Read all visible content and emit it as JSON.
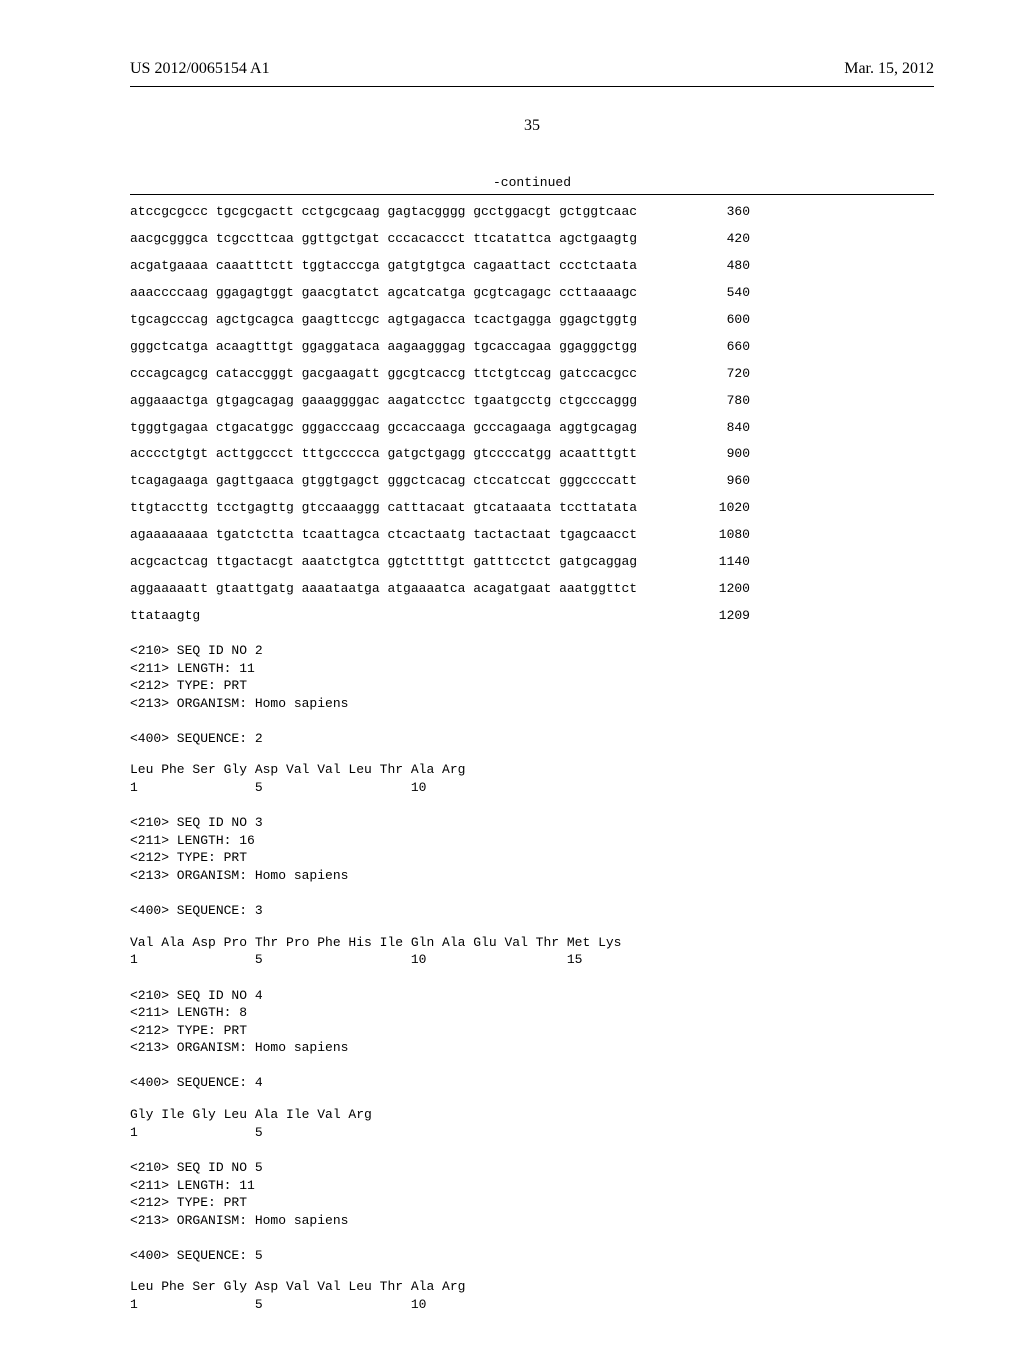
{
  "header": {
    "left": "US 2012/0065154 A1",
    "right": "Mar. 15, 2012"
  },
  "page_number": "35",
  "continued_label": "-continued",
  "nucleotide_rows": [
    {
      "seq": "atccgcgccc tgcgcgactt cctgcgcaag gagtacgggg gcctggacgt gctggtcaac",
      "n": "360"
    },
    {
      "seq": "aacgcgggca tcgccttcaa ggttgctgat cccacaccct ttcatattca agctgaagtg",
      "n": "420"
    },
    {
      "seq": "acgatgaaaa caaatttctt tggtacccga gatgtgtgca cagaattact ccctctaata",
      "n": "480"
    },
    {
      "seq": "aaaccccaag ggagagtggt gaacgtatct agcatcatga gcgtcagagc ccttaaaagc",
      "n": "540"
    },
    {
      "seq": "tgcagcccag agctgcagca gaagttccgc agtgagacca tcactgagga ggagctggtg",
      "n": "600"
    },
    {
      "seq": "gggctcatga acaagtttgt ggaggataca aagaagggag tgcaccagaa ggagggctgg",
      "n": "660"
    },
    {
      "seq": "cccagcagcg cataccgggt gacgaagatt ggcgtcaccg ttctgtccag gatccacgcc",
      "n": "720"
    },
    {
      "seq": "aggaaactga gtgagcagag gaaaggggac aagatcctcc tgaatgcctg ctgcccaggg",
      "n": "780"
    },
    {
      "seq": "tgggtgagaa ctgacatggc gggacccaag gccaccaaga gcccagaaga aggtgcagag",
      "n": "840"
    },
    {
      "seq": "acccctgtgt acttggccct tttgccccca gatgctgagg gtccccatgg acaatttgtt",
      "n": "900"
    },
    {
      "seq": "tcagagaaga gagttgaaca gtggtgagct gggctcacag ctccatccat gggccccatt",
      "n": "960"
    },
    {
      "seq": "ttgtaccttg tcctgagttg gtccaaaggg catttacaat gtcataaata tccttatata",
      "n": "1020"
    },
    {
      "seq": "agaaaaaaaa tgatctctta tcaattagca ctcactaatg tactactaat tgagcaacct",
      "n": "1080"
    },
    {
      "seq": "acgcactcag ttgactacgt aaatctgtca ggtcttttgt gatttcctct gatgcaggag",
      "n": "1140"
    },
    {
      "seq": "aggaaaaatt gtaattgatg aaaataatga atgaaaatca acagatgaat aaatggttct",
      "n": "1200"
    },
    {
      "seq": "ttataagtg",
      "n": "1209"
    }
  ],
  "records": [
    {
      "meta": "<210> SEQ ID NO 2\n<211> LENGTH: 11\n<212> TYPE: PRT\n<213> ORGANISM: Homo sapiens\n\n<400> SEQUENCE: 2",
      "protein": "Leu Phe Ser Gly Asp Val Val Leu Thr Ala Arg\n1               5                   10"
    },
    {
      "meta": "<210> SEQ ID NO 3\n<211> LENGTH: 16\n<212> TYPE: PRT\n<213> ORGANISM: Homo sapiens\n\n<400> SEQUENCE: 3",
      "protein": "Val Ala Asp Pro Thr Pro Phe His Ile Gln Ala Glu Val Thr Met Lys\n1               5                   10                  15"
    },
    {
      "meta": "<210> SEQ ID NO 4\n<211> LENGTH: 8\n<212> TYPE: PRT\n<213> ORGANISM: Homo sapiens\n\n<400> SEQUENCE: 4",
      "protein": "Gly Ile Gly Leu Ala Ile Val Arg\n1               5"
    },
    {
      "meta": "<210> SEQ ID NO 5\n<211> LENGTH: 11\n<212> TYPE: PRT\n<213> ORGANISM: Homo sapiens\n\n<400> SEQUENCE: 5",
      "protein": "Leu Phe Ser Gly Asp Val Val Leu Thr Ala Arg\n1               5                   10"
    }
  ]
}
